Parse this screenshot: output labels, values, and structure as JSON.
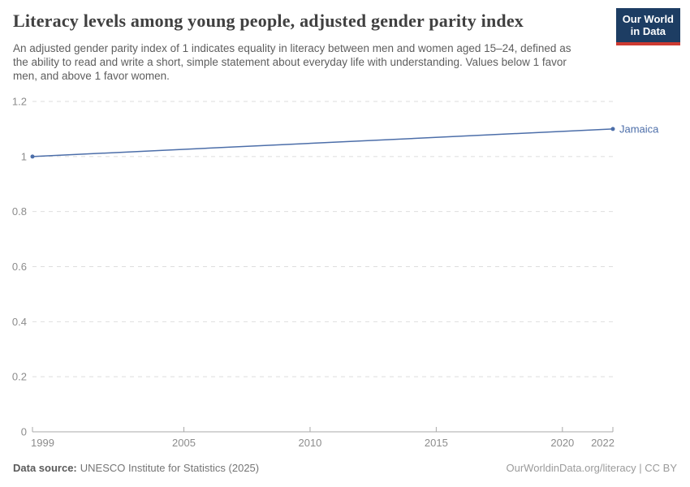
{
  "header": {
    "title": "Literacy levels among young people, adjusted gender parity index",
    "subtitle": "An adjusted gender parity index of 1 indicates equality in literacy between men and women aged 15–24, defined as the ability to read and write a short, simple statement about everyday life with understanding. Values below 1 favor men, and above 1 favor women.",
    "logo": {
      "line1": "Our World",
      "line2": "in Data",
      "bg_color": "#1d3d63",
      "stripe_color": "#cd3a31"
    }
  },
  "chart_data": {
    "type": "line",
    "title": "Literacy levels among young people, adjusted gender parity index",
    "xlabel": "",
    "ylabel": "",
    "xlim": [
      1999,
      2022
    ],
    "ylim": [
      0,
      1.2
    ],
    "x_ticks": [
      1999,
      2005,
      2010,
      2015,
      2020,
      2022
    ],
    "y_ticks": [
      0,
      0.2,
      0.4,
      0.6,
      0.8,
      1,
      1.2
    ],
    "grid": "horizontal-dashed",
    "legend": "inline-end-label",
    "series": [
      {
        "name": "Jamaica",
        "color": "#4C6EA9",
        "points": [
          [
            1999,
            1.0
          ],
          [
            2022,
            1.1
          ]
        ]
      }
    ]
  },
  "footer": {
    "datasource_label": "Data source:",
    "datasource_value": "UNESCO Institute for Statistics (2025)",
    "credit": "OurWorldinData.org/literacy | CC BY"
  },
  "colors": {
    "gridline": "#dedede",
    "axis": "#a8a8a8",
    "tick_label": "#8c8c8c",
    "title": "#404040",
    "subtitle": "#5e5e5e",
    "accent_line": "#4C6EA9"
  }
}
